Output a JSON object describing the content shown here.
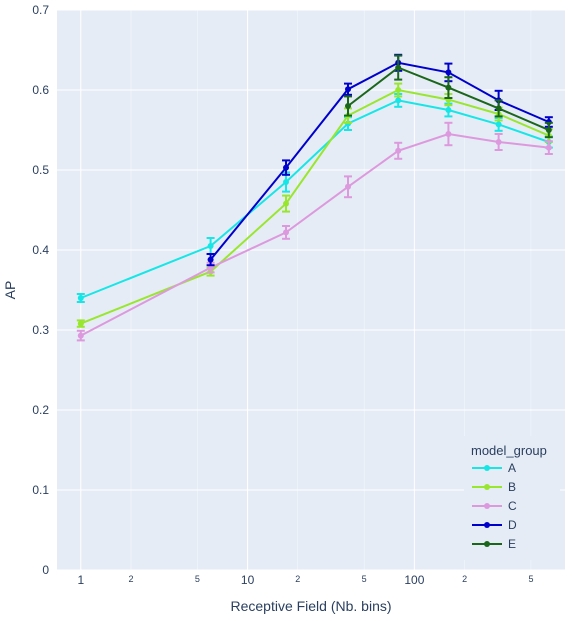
{
  "chart_data": {
    "type": "line",
    "xlabel": "Receptive Field (Nb. bins)",
    "ylabel": "AP",
    "x_scale": "log",
    "xlim": [
      0.72,
      800
    ],
    "ylim": [
      0,
      0.7
    ],
    "y_ticks": [
      "0",
      "0.1",
      "0.2",
      "0.3",
      "0.4",
      "0.5",
      "0.6",
      "0.7"
    ],
    "x_major_ticks": [
      {
        "value": 1,
        "label": "1"
      },
      {
        "value": 10,
        "label": "10"
      },
      {
        "value": 100,
        "label": "100"
      }
    ],
    "x_minor_ticks": [
      {
        "value": 2,
        "label": "2"
      },
      {
        "value": 5,
        "label": "5"
      },
      {
        "value": 20,
        "label": "2"
      },
      {
        "value": 50,
        "label": "5"
      },
      {
        "value": 200,
        "label": "2"
      },
      {
        "value": 500,
        "label": "5"
      }
    ],
    "grid": true,
    "background": "#e5ecf6",
    "legend": {
      "title": "model_group",
      "placement": "bottom-right"
    },
    "x": [
      1,
      6,
      17,
      40,
      80,
      160,
      320,
      640
    ],
    "series": [
      {
        "name": "A",
        "color": "#17e6e6",
        "values": [
          0.34,
          0.405,
          0.485,
          0.558,
          0.587,
          0.575,
          0.557,
          0.535
        ],
        "errors": [
          0.005,
          0.01,
          0.012,
          0.008,
          0.008,
          0.008,
          0.008,
          0.007
        ]
      },
      {
        "name": "B",
        "color": "#99e62e",
        "values": [
          0.308,
          0.373,
          0.458,
          0.568,
          0.6,
          0.588,
          0.57,
          0.543
        ],
        "errors": [
          0.004,
          0.005,
          0.01,
          0.009,
          0.008,
          0.007,
          0.008,
          0.008
        ]
      },
      {
        "name": "C",
        "color": "#dd99dd",
        "values": [
          0.293,
          0.378,
          0.422,
          0.479,
          0.524,
          0.545,
          0.535,
          0.528
        ],
        "errors": [
          0.006,
          0.006,
          0.008,
          0.013,
          0.01,
          0.014,
          0.01,
          0.008
        ]
      },
      {
        "name": "D",
        "color": "#0000cc",
        "values": [
          0.0,
          0.388,
          0.503,
          0.601,
          0.634,
          0.622,
          0.587,
          0.56
        ],
        "errors": [
          0.0,
          0.007,
          0.009,
          0.007,
          0.01,
          0.011,
          0.012,
          0.006
        ]
      },
      {
        "name": "E",
        "color": "#1a661a",
        "values": [
          0.0,
          0.0,
          0.0,
          0.58,
          0.628,
          0.603,
          0.577,
          0.55
        ],
        "errors": [
          0.0,
          0.0,
          0.0,
          0.012,
          0.015,
          0.013,
          0.01,
          0.009
        ]
      }
    ]
  }
}
